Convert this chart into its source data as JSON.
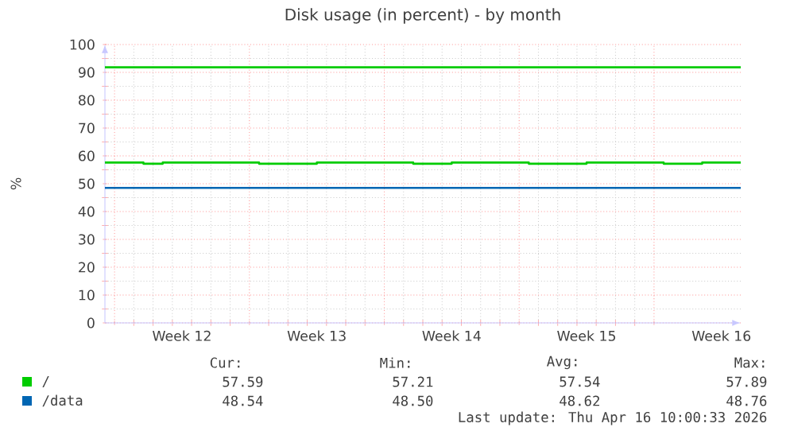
{
  "chart_data": {
    "type": "step",
    "title": "Disk usage (in percent) - by month",
    "ylabel": "%",
    "categories": [
      null,
      null,
      null,
      null,
      "Week 12",
      null,
      null,
      null,
      null,
      null,
      null,
      "Week 13",
      null,
      null,
      null,
      null,
      null,
      null,
      "Week 14",
      null,
      null,
      null,
      null,
      null,
      null,
      "Week 15",
      null,
      null,
      null,
      null,
      null,
      null,
      "Week 16",
      null
    ],
    "ylim": [
      0,
      100
    ],
    "yticks": [
      0,
      10,
      20,
      30,
      40,
      50,
      60,
      70,
      80,
      90,
      100
    ],
    "grid": true,
    "legend": "bottom",
    "series": [
      {
        "color": "#00cc00",
        "values": [
          91.8,
          91.8,
          91.8,
          91.8,
          91.8,
          91.8,
          91.8,
          91.8,
          91.8,
          91.8,
          91.8,
          91.8,
          91.8,
          91.8,
          91.8,
          91.8,
          91.8,
          91.8,
          91.8,
          91.8,
          91.8,
          91.8,
          91.8,
          91.8,
          91.8,
          91.8,
          91.8,
          91.8,
          91.8,
          91.8,
          91.8,
          91.8,
          91.8,
          91.8
        ]
      },
      {
        "name": "/",
        "color": "#00cc00",
        "values": [
          57.6,
          57.6,
          57.2,
          57.6,
          57.6,
          57.6,
          57.6,
          57.6,
          57.2,
          57.2,
          57.2,
          57.6,
          57.6,
          57.6,
          57.6,
          57.6,
          57.2,
          57.2,
          57.6,
          57.6,
          57.6,
          57.6,
          57.2,
          57.2,
          57.2,
          57.6,
          57.6,
          57.6,
          57.6,
          57.2,
          57.2,
          57.6,
          57.6,
          57.6
        ]
      },
      {
        "name": "/data",
        "color": "#0066b3",
        "values": [
          48.5,
          48.5,
          48.5,
          48.5,
          48.5,
          48.5,
          48.5,
          48.5,
          48.5,
          48.5,
          48.5,
          48.5,
          48.5,
          48.5,
          48.5,
          48.5,
          48.5,
          48.5,
          48.5,
          48.5,
          48.5,
          48.5,
          48.5,
          48.5,
          48.5,
          48.5,
          48.5,
          48.5,
          48.5,
          48.5,
          48.5,
          48.5,
          48.5,
          48.5
        ]
      }
    ],
    "annotations": [
      "Cur:",
      "Min:",
      "Avg:",
      "Max:",
      "57.59",
      "57.21",
      "57.54",
      "57.89",
      "48.54",
      "48.50",
      "48.62",
      "48.76",
      "Last update: Thu Apr 16 10:00:33 2026"
    ]
  }
}
